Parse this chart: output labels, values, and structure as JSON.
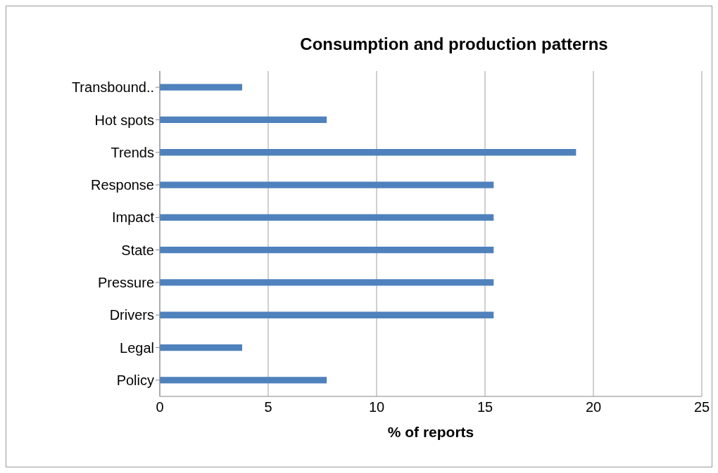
{
  "chart_data": {
    "type": "bar",
    "orientation": "horizontal",
    "title": "Consumption and production patterns",
    "xlabel": "% of reports",
    "categories": [
      "Transbound..",
      "Hot spots",
      "Trends",
      "Response",
      "Impact",
      "State",
      "Pressure",
      "Drivers",
      "Legal",
      "Policy"
    ],
    "values": [
      3.8,
      7.7,
      19.2,
      15.4,
      15.4,
      15.4,
      15.4,
      15.4,
      3.8,
      7.7
    ],
    "color": "#4f81bd",
    "xlim": [
      0,
      25
    ],
    "xticks": [
      0,
      5,
      10,
      15,
      20,
      25
    ],
    "grid": "x",
    "legend": false
  }
}
